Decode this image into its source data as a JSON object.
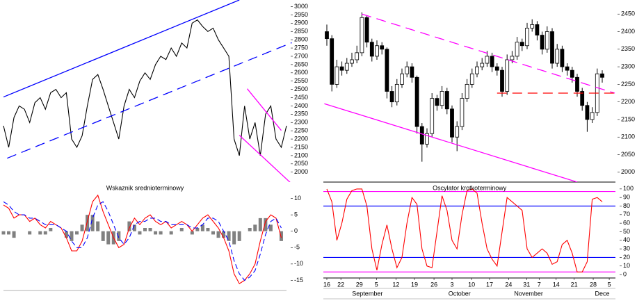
{
  "chart_data": [
    {
      "type": "line",
      "color": "#000000",
      "values": [
        2280,
        2150,
        2330,
        2400,
        2380,
        2300,
        2420,
        2450,
        2380,
        2480,
        2500,
        2450,
        2480,
        2200,
        2150,
        2220,
        2400,
        2560,
        2590,
        2500,
        2400,
        2300,
        2200,
        2400,
        2500,
        2450,
        2550,
        2600,
        2560,
        2650,
        2700,
        2680,
        2750,
        2700,
        2780,
        2750,
        2900,
        2920,
        2880,
        2850,
        2870,
        2800,
        2750,
        2700,
        2200,
        2100,
        2400,
        2200,
        2300,
        2100,
        2350,
        2400,
        2200,
        2150,
        2280
      ],
      "xlim": [
        0,
        54
      ],
      "ylim": [
        1940,
        3040
      ],
      "yticks": [
        2000,
        2050,
        2100,
        2150,
        2200,
        2250,
        2300,
        2350,
        2400,
        2450,
        2500,
        2550,
        2600,
        2650,
        2700,
        2750,
        2800,
        2850,
        2900,
        2950,
        3000
      ],
      "trendlines": [
        {
          "points": [
            [
              0,
              2454
            ],
            [
              45,
              3040
            ]
          ],
          "color": "#0000ff",
          "dash": false
        },
        {
          "points": [
            [
              0.7,
              2084
            ],
            [
              55,
              2782
            ]
          ],
          "color": "#0000ff",
          "dash": true
        },
        {
          "points": [
            [
              45,
              2223
            ],
            [
              55,
              1929
            ]
          ],
          "color": "#ff00ff",
          "dash": false
        },
        {
          "points": [
            [
              46.5,
              2504
            ],
            [
              53,
              2252
            ]
          ],
          "color": "#ff00ff",
          "dash": false
        }
      ]
    },
    {
      "type": "indicator",
      "title": "Wskaznik srednioterminowy",
      "series": [
        {
          "color": "#ff0000",
          "dash": false,
          "values": [
            8,
            7,
            4,
            5,
            5,
            3,
            4,
            2,
            1,
            3,
            2,
            1,
            -2,
            -6,
            -6,
            -3,
            3,
            9,
            11,
            6,
            2,
            -2,
            -5,
            -4,
            1,
            4,
            2,
            4,
            5,
            3,
            2,
            3,
            1,
            2,
            3,
            2,
            0,
            2,
            4,
            5,
            3,
            1,
            -2,
            -6,
            -13,
            -16,
            -15,
            -13,
            -10,
            -3,
            3,
            5,
            4,
            -2
          ]
        },
        {
          "color": "#0000ff",
          "dash": true,
          "values": [
            9,
            8,
            6,
            5,
            5,
            4,
            4,
            3,
            2,
            2,
            2,
            1,
            0,
            -3,
            -5,
            -5,
            -2,
            4,
            8,
            9,
            6,
            2,
            -2,
            -4,
            -2,
            2,
            3,
            3,
            4,
            4,
            3,
            3,
            2,
            2,
            2,
            2,
            1,
            1,
            2,
            4,
            4,
            3,
            0,
            -3,
            -9,
            -13,
            -15,
            -14,
            -12,
            -7,
            -1,
            3,
            4,
            1
          ]
        }
      ],
      "bars": [
        -1,
        -1,
        -2,
        0,
        0,
        -1,
        0,
        -1,
        -1,
        1,
        0,
        0,
        -2,
        -3,
        -1,
        2,
        5,
        5,
        3,
        -3,
        -4,
        -4,
        -3,
        0,
        3,
        2,
        -1,
        1,
        1,
        -1,
        -1,
        0,
        -1,
        0,
        1,
        0,
        -1,
        1,
        2,
        1,
        -1,
        -2,
        -2,
        -3,
        -4,
        -3,
        0,
        1,
        2,
        4,
        4,
        2,
        0,
        -3
      ],
      "bar_color": "#808080",
      "xlim": [
        0,
        54
      ],
      "ylim": [
        -20,
        15
      ],
      "yticks": [
        -15,
        -10,
        -5,
        0,
        5,
        10
      ]
    },
    {
      "type": "candlestick",
      "open": [
        2400,
        2380,
        2250,
        2300,
        2290,
        2310,
        2320,
        2340,
        2440,
        2370,
        2330,
        2360,
        2350,
        2230,
        2200,
        2250,
        2280,
        2300,
        2270,
        2130,
        2080,
        2110,
        2210,
        2190,
        2230,
        2180,
        2100,
        2130,
        2210,
        2250,
        2280,
        2300,
        2310,
        2330,
        2300,
        2290,
        2230,
        2320,
        2330,
        2370,
        2360,
        2410,
        2420,
        2390,
        2350,
        2400,
        2310,
        2350,
        2300,
        2290,
        2270,
        2230,
        2190,
        2150,
        2170,
        2280
      ],
      "high": [
        2420,
        2390,
        2320,
        2315,
        2325,
        2340,
        2360,
        2455,
        2445,
        2380,
        2375,
        2370,
        2355,
        2245,
        2265,
        2295,
        2315,
        2310,
        2275,
        2140,
        2125,
        2225,
        2220,
        2245,
        2240,
        2190,
        2145,
        2225,
        2265,
        2295,
        2315,
        2325,
        2345,
        2340,
        2310,
        2300,
        2335,
        2345,
        2385,
        2380,
        2425,
        2435,
        2430,
        2400,
        2415,
        2410,
        2365,
        2360,
        2310,
        2300,
        2280,
        2240,
        2200,
        2185,
        2295,
        2290
      ],
      "low": [
        2360,
        2230,
        2240,
        2275,
        2280,
        2300,
        2310,
        2330,
        2355,
        2315,
        2320,
        2335,
        2210,
        2185,
        2190,
        2240,
        2270,
        2255,
        2110,
        2030,
        2070,
        2100,
        2175,
        2180,
        2165,
        2085,
        2060,
        2120,
        2200,
        2240,
        2270,
        2290,
        2300,
        2285,
        2275,
        2215,
        2220,
        2310,
        2320,
        2345,
        2350,
        2400,
        2375,
        2335,
        2340,
        2295,
        2300,
        2285,
        2275,
        2255,
        2215,
        2175,
        2115,
        2140,
        2160,
        2255
      ],
      "close": [
        2380,
        2250,
        2300,
        2290,
        2310,
        2320,
        2340,
        2440,
        2370,
        2330,
        2360,
        2350,
        2230,
        2200,
        2250,
        2280,
        2300,
        2270,
        2130,
        2080,
        2110,
        2210,
        2190,
        2230,
        2180,
        2100,
        2130,
        2210,
        2250,
        2280,
        2300,
        2310,
        2330,
        2300,
        2290,
        2230,
        2320,
        2330,
        2370,
        2360,
        2410,
        2420,
        2390,
        2350,
        2400,
        2310,
        2350,
        2300,
        2290,
        2270,
        2230,
        2190,
        2150,
        2170,
        2280,
        2270
      ],
      "up_color": "#ffffff",
      "down_color": "#000000",
      "xlim": [
        -0.5,
        57.5
      ],
      "ylim": [
        1970,
        2490
      ],
      "yticks": [
        2000,
        2050,
        2100,
        2150,
        2200,
        2250,
        2300,
        2350,
        2400,
        2450
      ],
      "trendlines": [
        {
          "points": [
            [
              7,
              2450
            ],
            [
              57.5,
              2225
            ]
          ],
          "color": "#ff00ff",
          "dash": true
        },
        {
          "points": [
            [
              -0.5,
              2195
            ],
            [
              50,
              1972
            ]
          ],
          "color": "#ff00ff",
          "dash": false
        },
        {
          "points": [
            [
              34,
              2225
            ],
            [
              57.5,
              2225
            ]
          ],
          "color": "#ff0000",
          "dash": true
        }
      ]
    },
    {
      "type": "line",
      "title": "Oscylator krotkoterminowy",
      "color": "#ff0000",
      "values": [
        100,
        85,
        40,
        60,
        88,
        98,
        100,
        100,
        80,
        30,
        5,
        35,
        58,
        30,
        8,
        20,
        60,
        90,
        82,
        30,
        10,
        8,
        50,
        92,
        75,
        40,
        30,
        70,
        98,
        100,
        95,
        60,
        30,
        18,
        10,
        50,
        90,
        85,
        80,
        75,
        30,
        20,
        25,
        30,
        25,
        12,
        15,
        35,
        40,
        25,
        3,
        3,
        15,
        88,
        90,
        85
      ],
      "xlim": [
        -0.5,
        57.5
      ],
      "ylim": [
        -4,
        108
      ],
      "yticks": [
        0,
        10,
        20,
        30,
        40,
        50,
        60,
        70,
        80,
        90,
        100
      ],
      "levels": [
        {
          "value": 97,
          "color": "#ff00ff"
        },
        {
          "value": 80,
          "color": "#0000ff"
        },
        {
          "value": 20,
          "color": "#0000ff"
        },
        {
          "value": 3,
          "color": "#ff00ff"
        }
      ],
      "xticks": [
        {
          "value": 0,
          "label": "16"
        },
        {
          "value": 2.8,
          "label": "22"
        },
        {
          "value": 6.5,
          "label": "29"
        },
        {
          "value": 9.9,
          "label": "5"
        },
        {
          "value": 13.8,
          "label": "12"
        },
        {
          "value": 17.5,
          "label": "19"
        },
        {
          "value": 21.4,
          "label": "26"
        },
        {
          "value": 25,
          "label": "3"
        },
        {
          "value": 28.9,
          "label": "10"
        },
        {
          "value": 32.5,
          "label": "17"
        },
        {
          "value": 36.3,
          "label": "24"
        },
        {
          "value": 39.9,
          "label": "31"
        },
        {
          "value": 42.4,
          "label": "7"
        },
        {
          "value": 45.8,
          "label": "14"
        },
        {
          "value": 49.4,
          "label": "21"
        },
        {
          "value": 53.2,
          "label": "28"
        },
        {
          "value": 56.4,
          "label": "5"
        }
      ],
      "month_ticks": [
        {
          "value": 8.1,
          "label": "September"
        },
        {
          "value": 26.5,
          "label": "October"
        },
        {
          "value": 40.3,
          "label": "November"
        },
        {
          "value": 55,
          "label": "Dece"
        }
      ]
    }
  ]
}
